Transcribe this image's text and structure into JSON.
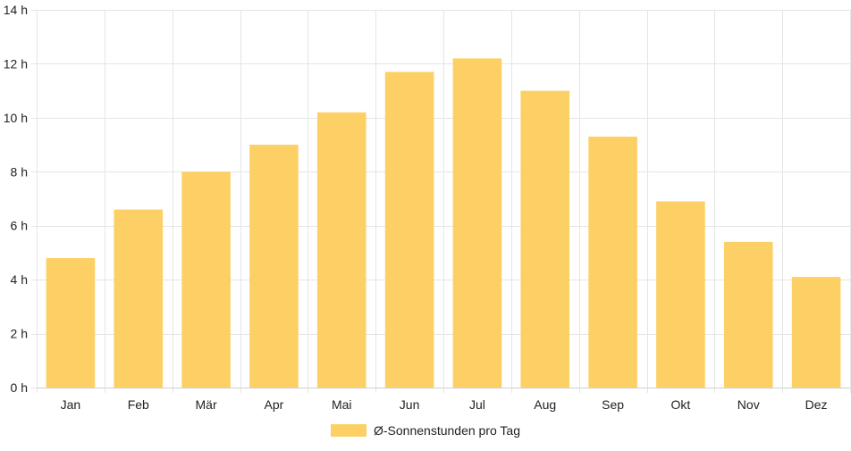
{
  "chart_data": {
    "type": "bar",
    "categories": [
      "Jan",
      "Feb",
      "Mär",
      "Apr",
      "Mai",
      "Jun",
      "Jul",
      "Aug",
      "Sep",
      "Okt",
      "Nov",
      "Dez"
    ],
    "series": [
      {
        "name": "Ø-Sonnenstunden pro Tag",
        "values": [
          4.8,
          6.6,
          8.0,
          9.0,
          10.2,
          11.7,
          12.2,
          11.0,
          9.3,
          6.9,
          5.4,
          4.1
        ],
        "color": "#fdd066"
      }
    ],
    "y_unit": "h",
    "ylim": [
      0,
      14
    ],
    "y_ticks": [
      0,
      2,
      4,
      6,
      8,
      10,
      12,
      14
    ],
    "y_tick_labels": [
      "0 h",
      "2 h",
      "4 h",
      "6 h",
      "8 h",
      "10 h",
      "12 h",
      "14 h"
    ],
    "grid": true,
    "legend_position": "bottom-center",
    "title": "",
    "xlabel": "",
    "ylabel": ""
  },
  "colors": {
    "bar": "#fdd066",
    "grid": "#e5e5e5",
    "text": "#222222"
  }
}
